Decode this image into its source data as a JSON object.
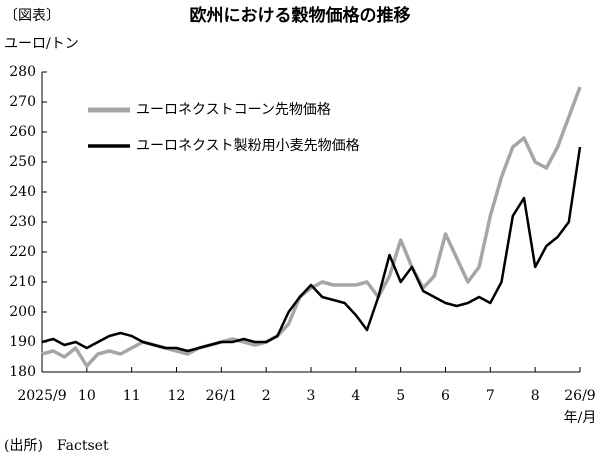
{
  "chart_data": {
    "type": "line",
    "figure_tag": "〔図表〕",
    "title": "欧州における穀物価格の推移",
    "y_label": "ユーロ/トン",
    "x_label": "年/月",
    "source": "(出所)　Factset",
    "categories": [
      "2025/9",
      null,
      null,
      null,
      "10",
      null,
      null,
      null,
      "11",
      null,
      null,
      null,
      "12",
      null,
      null,
      null,
      "26/1",
      null,
      null,
      null,
      "2",
      null,
      null,
      null,
      "3",
      null,
      null,
      null,
      "4",
      null,
      null,
      null,
      "5",
      null,
      null,
      null,
      "6",
      null,
      null,
      null,
      "7",
      null,
      null,
      null,
      "8",
      null,
      null,
      null,
      "26/9"
    ],
    "series": [
      {
        "name": "ユーロネクストコーン先物価格",
        "color": "#a6a6a6",
        "values": [
          186,
          187,
          185,
          188,
          182,
          186,
          187,
          186,
          188,
          190,
          189,
          188,
          187,
          186,
          188,
          189,
          190,
          191,
          190,
          189,
          190,
          192,
          196,
          205,
          208,
          210,
          209,
          209,
          209,
          210,
          205,
          212,
          224,
          215,
          208,
          212,
          226,
          218,
          210,
          215,
          232,
          245,
          255,
          258,
          250,
          248,
          255,
          265,
          275
        ]
      },
      {
        "name": "ユーロネクスト製粉用小麦先物価格",
        "color": "#000000",
        "values": [
          190,
          191,
          189,
          190,
          188,
          190,
          192,
          193,
          192,
          190,
          189,
          188,
          188,
          187,
          188,
          189,
          190,
          190,
          191,
          190,
          190,
          192,
          200,
          205,
          209,
          205,
          204,
          203,
          199,
          194,
          205,
          219,
          210,
          215,
          207,
          205,
          203,
          202,
          203,
          205,
          203,
          210,
          232,
          238,
          215,
          222,
          225,
          230,
          255
        ]
      }
    ],
    "ylim": [
      180,
      280
    ],
    "yticks": [
      180,
      190,
      200,
      210,
      220,
      230,
      240,
      250,
      260,
      270,
      280
    ],
    "grid": false
  }
}
